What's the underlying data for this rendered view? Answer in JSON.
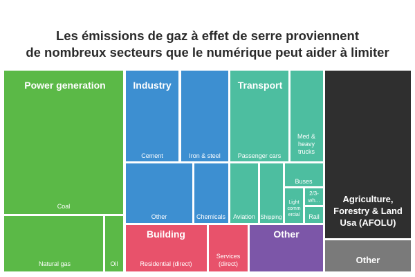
{
  "chart_data": {
    "type": "treemap",
    "title_lines": [
      "Les émissions de gaz à effet de serre proviennent",
      "de nombreux secteurs que le numérique peut aider à limiter"
    ],
    "groups": [
      {
        "label": "Power generation",
        "color": "#5bb947",
        "items": [
          "Coal",
          "Natural gas",
          "Oil"
        ]
      },
      {
        "label": "Industry",
        "color": "#3d8fd1",
        "items": [
          "Cement",
          "Iron & steel",
          "Other",
          "Chemicals"
        ]
      },
      {
        "label": "Transport",
        "color": "#4dbea0",
        "items": [
          "Passenger cars",
          "Med & heavy trucks",
          "Aviation",
          "Shipping",
          "Buses",
          "Light commercial",
          "2/3-wh...",
          "Rail"
        ]
      },
      {
        "label": "Building",
        "color": "#e8526b",
        "items": [
          "Residential (direct)",
          "Services (direct)"
        ]
      },
      {
        "label": "Other",
        "color": "#7c56a8",
        "items": []
      },
      {
        "label": "Agriculture, Forestry & Land Usa (AFOLU)",
        "color": "#2f2f2f",
        "items": []
      },
      {
        "label": "Other",
        "color": "#7a7a7a",
        "items": []
      }
    ]
  }
}
